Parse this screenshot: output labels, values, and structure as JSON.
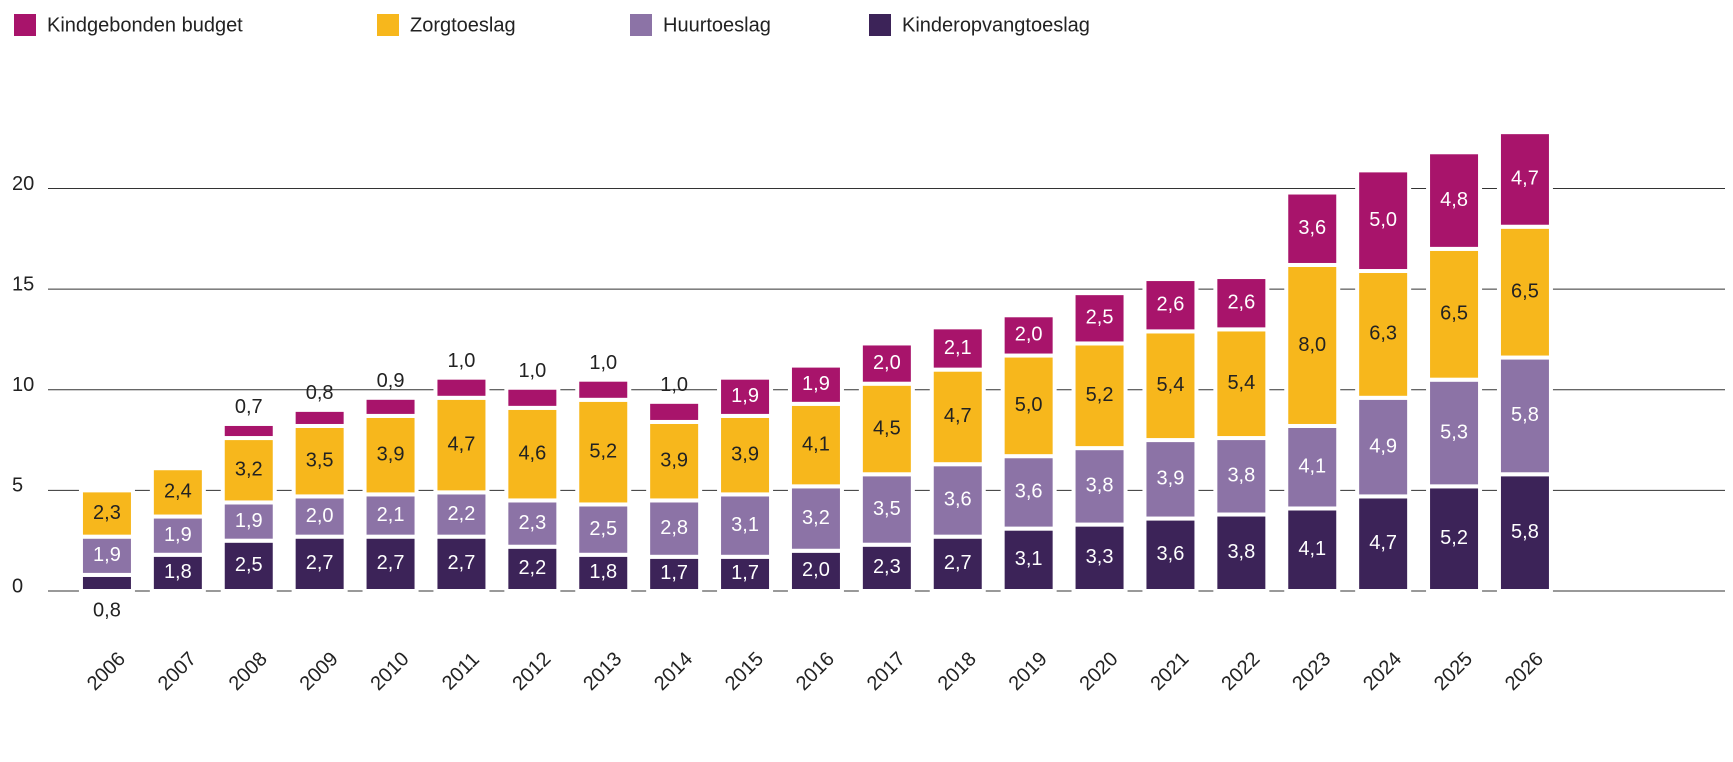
{
  "chart_data": {
    "type": "stacked-bar",
    "categories": [
      "2006",
      "2007",
      "2008",
      "2009",
      "2010",
      "2011",
      "2012",
      "2013",
      "2014",
      "2015",
      "2016",
      "2017",
      "2018",
      "2019",
      "2020",
      "2021",
      "2022",
      "2023",
      "2024",
      "2025",
      "2026"
    ],
    "series": [
      {
        "name": "Kinderopvangtoeslag",
        "color": "#3c2358",
        "values": [
          0.8,
          1.8,
          2.5,
          2.7,
          2.7,
          2.7,
          2.2,
          1.8,
          1.7,
          1.7,
          2.0,
          2.3,
          2.7,
          3.1,
          3.3,
          3.6,
          3.8,
          4.1,
          4.7,
          5.2,
          5.8
        ],
        "value_labels": [
          "0,8",
          "1,8",
          "2,5",
          "2,7",
          "2,7",
          "2,7",
          "2,2",
          "1,8",
          "1,7",
          "1,7",
          "2,0",
          "2,3",
          "2,7",
          "3,1",
          "3,3",
          "3,6",
          "3,8",
          "4,1",
          "4,7",
          "5,2",
          "5,8"
        ]
      },
      {
        "name": "Huurtoeslag",
        "color": "#8c73a6",
        "values": [
          1.9,
          1.9,
          1.9,
          2.0,
          2.1,
          2.2,
          2.3,
          2.5,
          2.8,
          3.1,
          3.2,
          3.5,
          3.6,
          3.6,
          3.8,
          3.9,
          3.8,
          4.1,
          4.9,
          5.3,
          5.8
        ],
        "value_labels": [
          "1,9",
          "1,9",
          "1,9",
          "2,0",
          "2,1",
          "2,2",
          "2,3",
          "2,5",
          "2,8",
          "3,1",
          "3,2",
          "3,5",
          "3,6",
          "3,6",
          "3,8",
          "3,9",
          "3,8",
          "4,1",
          "4,9",
          "5,3",
          "5,8"
        ]
      },
      {
        "name": "Zorgtoeslag",
        "color": "#f7b71c",
        "values": [
          2.3,
          2.4,
          3.2,
          3.5,
          3.9,
          4.7,
          4.6,
          5.2,
          3.9,
          3.9,
          4.1,
          4.5,
          4.7,
          5.0,
          5.2,
          5.4,
          5.4,
          8.0,
          6.3,
          6.5,
          6.5
        ],
        "value_labels": [
          "2,3",
          "2,4",
          "3,2",
          "3,5",
          "3,9",
          "4,7",
          "4,6",
          "5,2",
          "3,9",
          "3,9",
          "4,1",
          "4,5",
          "4,7",
          "5,0",
          "5,2",
          "5,4",
          "5,4",
          "8,0",
          "6,3",
          "6,5",
          "6,5"
        ]
      },
      {
        "name": "Kindgebonden budget",
        "color": "#a8146b",
        "values": [
          null,
          null,
          0.7,
          0.8,
          0.9,
          1.0,
          1.0,
          1.0,
          1.0,
          1.9,
          1.9,
          2.0,
          2.1,
          2.0,
          2.5,
          2.6,
          2.6,
          3.6,
          5.0,
          4.8,
          4.7
        ],
        "value_labels": [
          null,
          null,
          "0,7",
          "0,8",
          "0,9",
          "1,0",
          "1,0",
          "1,0",
          "1,0",
          "1,9",
          "1,9",
          "2,0",
          "2,1",
          "2,0",
          "2,5",
          "2,6",
          "2,6",
          "3,6",
          "5,0",
          "4,8",
          "4,7"
        ]
      }
    ],
    "ylim": [
      0,
      24
    ],
    "yticks": [
      0,
      5,
      10,
      15,
      20
    ],
    "grid": true
  }
}
